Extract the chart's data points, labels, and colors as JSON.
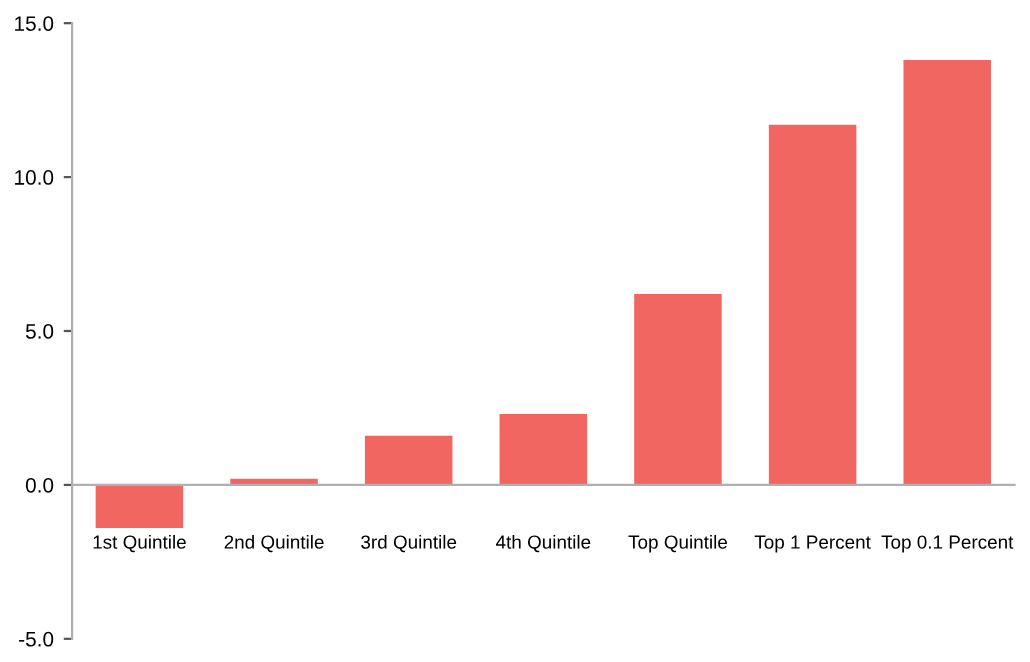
{
  "chart_data": {
    "type": "bar",
    "categories": [
      "1st Quintile",
      "2nd Quintile",
      "3rd Quintile",
      "4th Quintile",
      "Top Quintile",
      "Top 1 Percent",
      "Top 0.1 Percent"
    ],
    "values": [
      -1.4,
      0.2,
      1.6,
      2.3,
      6.2,
      11.7,
      13.8
    ],
    "color": "#f26662",
    "ylim": [
      -5,
      15
    ],
    "yticks": [
      {
        "value": -5,
        "label": "-5.0"
      },
      {
        "value": 0,
        "label": "0.0"
      },
      {
        "value": 5,
        "label": "5.0"
      },
      {
        "value": 10,
        "label": "10.0"
      },
      {
        "value": 15,
        "label": "15.0"
      }
    ],
    "legend": false
  }
}
